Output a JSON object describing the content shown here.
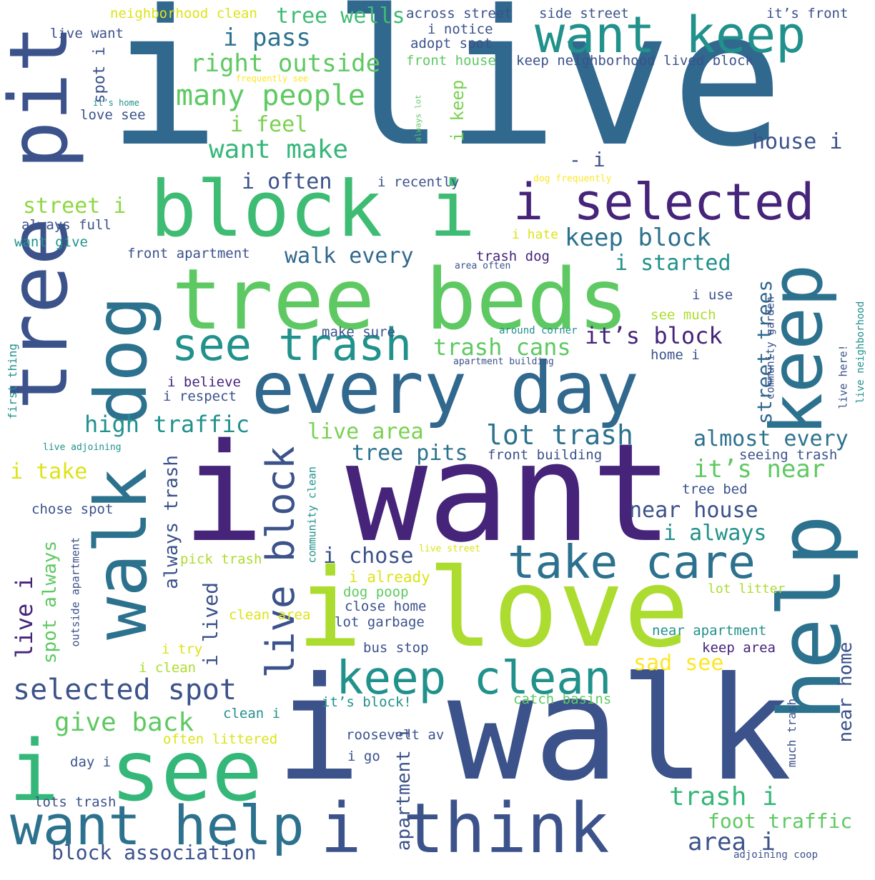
{
  "palette": {
    "dark_purple": "#46247a",
    "purple": "#472d7b",
    "indigo": "#3b528b",
    "blue": "#2c728e",
    "teal": "#21918c",
    "green_teal": "#28ae80",
    "green": "#5ec962",
    "lime": "#addc30",
    "yellow": "#fde725"
  },
  "words": [
    {
      "text": "i live",
      "color": "#31688e"
    },
    {
      "text": "i want",
      "color": "#46247a"
    },
    {
      "text": "i walk",
      "color": "#3b528b"
    },
    {
      "text": "i love",
      "color": "#addc30"
    },
    {
      "text": "tree beds",
      "color": "#5ec962"
    },
    {
      "text": "every day",
      "color": "#31688e"
    },
    {
      "text": "block i",
      "color": "#3fbc73"
    },
    {
      "text": "i see",
      "color": "#35b779"
    },
    {
      "text": "i think",
      "color": "#3b528b"
    },
    {
      "text": "want help",
      "color": "#2c728e"
    },
    {
      "text": "keep clean",
      "color": "#21918c"
    },
    {
      "text": "want keep",
      "color": "#21918c"
    },
    {
      "text": "i selected",
      "color": "#46247a"
    },
    {
      "text": "take care",
      "color": "#2c728e"
    },
    {
      "text": "see trash",
      "color": "#21918c"
    },
    {
      "text": "help",
      "color": "#2c728e"
    },
    {
      "text": "keep",
      "color": "#2c728e"
    },
    {
      "text": "tree pit",
      "color": "#3b528b"
    },
    {
      "text": "walk dog",
      "color": "#2c728e"
    },
    {
      "text": "live block",
      "color": "#3b528b"
    },
    {
      "text": "selected spot",
      "color": "#3b528b"
    },
    {
      "text": "lot trash",
      "color": "#2c728e"
    },
    {
      "text": "many people",
      "color": "#5ec962"
    },
    {
      "text": "want make",
      "color": "#35b779"
    },
    {
      "text": "right outside",
      "color": "#5ec962"
    },
    {
      "text": "i pass",
      "color": "#2c728e"
    },
    {
      "text": "tree wells",
      "color": "#3fbc73"
    },
    {
      "text": "i feel",
      "color": "#7ad151"
    },
    {
      "text": "i often",
      "color": "#3b528b"
    },
    {
      "text": "street i",
      "color": "#8fd744"
    },
    {
      "text": "walk every",
      "color": "#31688e"
    },
    {
      "text": "keep block",
      "color": "#2c728e"
    },
    {
      "text": "i started",
      "color": "#21918c"
    },
    {
      "text": "trash cans",
      "color": "#5ec962"
    },
    {
      "text": "it’s block",
      "color": "#46247a"
    },
    {
      "text": "high traffic",
      "color": "#21918c"
    },
    {
      "text": "live area",
      "color": "#7ad151"
    },
    {
      "text": "tree pits",
      "color": "#2c728e"
    },
    {
      "text": "almost every",
      "color": "#2c728e"
    },
    {
      "text": "it’s near",
      "color": "#5ec962"
    },
    {
      "text": "near house",
      "color": "#3b528b"
    },
    {
      "text": "i always",
      "color": "#21918c"
    },
    {
      "text": "i take",
      "color": "#dde318"
    },
    {
      "text": "give back",
      "color": "#5ec962"
    },
    {
      "text": "block association",
      "color": "#3b528b"
    },
    {
      "text": "trash i",
      "color": "#35b779"
    },
    {
      "text": "foot traffic",
      "color": "#5ec962"
    },
    {
      "text": "area i",
      "color": "#3b528b"
    },
    {
      "text": "sad see",
      "color": "#fde725"
    },
    {
      "text": "house i",
      "color": "#3b528b"
    },
    {
      "text": "i chose",
      "color": "#3b528b"
    },
    {
      "text": "always trash",
      "color": "#3b528b"
    },
    {
      "text": "i lived",
      "color": "#3b528b"
    },
    {
      "text": "live i",
      "color": "#46247a"
    },
    {
      "text": "spot always",
      "color": "#5ec962"
    },
    {
      "text": "apartment i",
      "color": "#3b528b"
    },
    {
      "text": "near home",
      "color": "#3b528b"
    },
    {
      "text": "street trees",
      "color": "#31688e"
    },
    {
      "text": "neighborhood clean",
      "color": "#dde318"
    },
    {
      "text": "across street",
      "color": "#3b528b"
    },
    {
      "text": "side street",
      "color": "#3b528b"
    },
    {
      "text": "it’s front",
      "color": "#3b528b"
    },
    {
      "text": "live want",
      "color": "#3b528b"
    },
    {
      "text": "i notice",
      "color": "#3b528b"
    },
    {
      "text": "adopt spot",
      "color": "#3b528b"
    },
    {
      "text": "front house",
      "color": "#5ec962"
    },
    {
      "text": "keep neighborhood",
      "color": "#3b528b"
    },
    {
      "text": "lived block",
      "color": "#3b528b"
    },
    {
      "text": "frequently see",
      "color": "#fde725"
    },
    {
      "text": "it’s home",
      "color": "#21918c"
    },
    {
      "text": "love see",
      "color": "#3b528b"
    },
    {
      "text": "spot i",
      "color": "#3b528b"
    },
    {
      "text": "always lot",
      "color": "#5ec962"
    },
    {
      "text": "i keep",
      "color": "#7ad151"
    },
    {
      "text": "- i",
      "color": "#3b528b"
    },
    {
      "text": "i recently",
      "color": "#3b528b"
    },
    {
      "text": "dog frequently",
      "color": "#fde725"
    },
    {
      "text": "always full",
      "color": "#3b528b"
    },
    {
      "text": "want give",
      "color": "#21918c"
    },
    {
      "text": "front apartment",
      "color": "#3b528b"
    },
    {
      "text": "i hate",
      "color": "#dde318"
    },
    {
      "text": "trash dog",
      "color": "#46247a"
    },
    {
      "text": "area often",
      "color": "#3b528b"
    },
    {
      "text": "i use",
      "color": "#3b528b"
    },
    {
      "text": "see much",
      "color": "#addc30"
    },
    {
      "text": "make sure",
      "color": "#3b528b"
    },
    {
      "text": "around corner",
      "color": "#21918c"
    },
    {
      "text": "home i",
      "color": "#3b528b"
    },
    {
      "text": "apartment building",
      "color": "#3b528b"
    },
    {
      "text": "first thing",
      "color": "#21918c"
    },
    {
      "text": "i believe",
      "color": "#46247a"
    },
    {
      "text": "i respect",
      "color": "#3b528b"
    },
    {
      "text": "live adjoining",
      "color": "#21918c"
    },
    {
      "text": "front building",
      "color": "#3b528b"
    },
    {
      "text": "seeing trash",
      "color": "#3b528b"
    },
    {
      "text": "tree bed",
      "color": "#3b528b"
    },
    {
      "text": "live here!",
      "color": "#3b528b"
    },
    {
      "text": "live neighborhood",
      "color": "#21918c"
    },
    {
      "text": "community garden",
      "color": "#3b528b"
    },
    {
      "text": "chose spot",
      "color": "#3b528b"
    },
    {
      "text": "community clean",
      "color": "#21918c"
    },
    {
      "text": "outside apartment",
      "color": "#3b528b"
    },
    {
      "text": "pick trash",
      "color": "#addc30"
    },
    {
      "text": "live street",
      "color": "#dde318"
    },
    {
      "text": "i already",
      "color": "#dde318"
    },
    {
      "text": "dog poop",
      "color": "#5ec962"
    },
    {
      "text": "close home",
      "color": "#3b528b"
    },
    {
      "text": "lot garbage",
      "color": "#3b528b"
    },
    {
      "text": "clean area",
      "color": "#dde318"
    },
    {
      "text": "lot litter",
      "color": "#addc30"
    },
    {
      "text": "near apartment",
      "color": "#21918c"
    },
    {
      "text": "keep area",
      "color": "#46247a"
    },
    {
      "text": "bus stop",
      "color": "#3b528b"
    },
    {
      "text": "i try",
      "color": "#dde318"
    },
    {
      "text": "i clean",
      "color": "#addc30"
    },
    {
      "text": "it’s block!",
      "color": "#21918c"
    },
    {
      "text": "catch basins",
      "color": "#5ec962"
    },
    {
      "text": "clean i",
      "color": "#21918c"
    },
    {
      "text": "often littered",
      "color": "#dde318"
    },
    {
      "text": "roosevelt av",
      "color": "#3b528b"
    },
    {
      "text": "i go",
      "color": "#3b528b"
    },
    {
      "text": "day i",
      "color": "#3b528b"
    },
    {
      "text": "much trash",
      "color": "#3b528b"
    },
    {
      "text": "lots trash",
      "color": "#3b528b"
    },
    {
      "text": "adjoining coop",
      "color": "#3b528b"
    }
  ]
}
